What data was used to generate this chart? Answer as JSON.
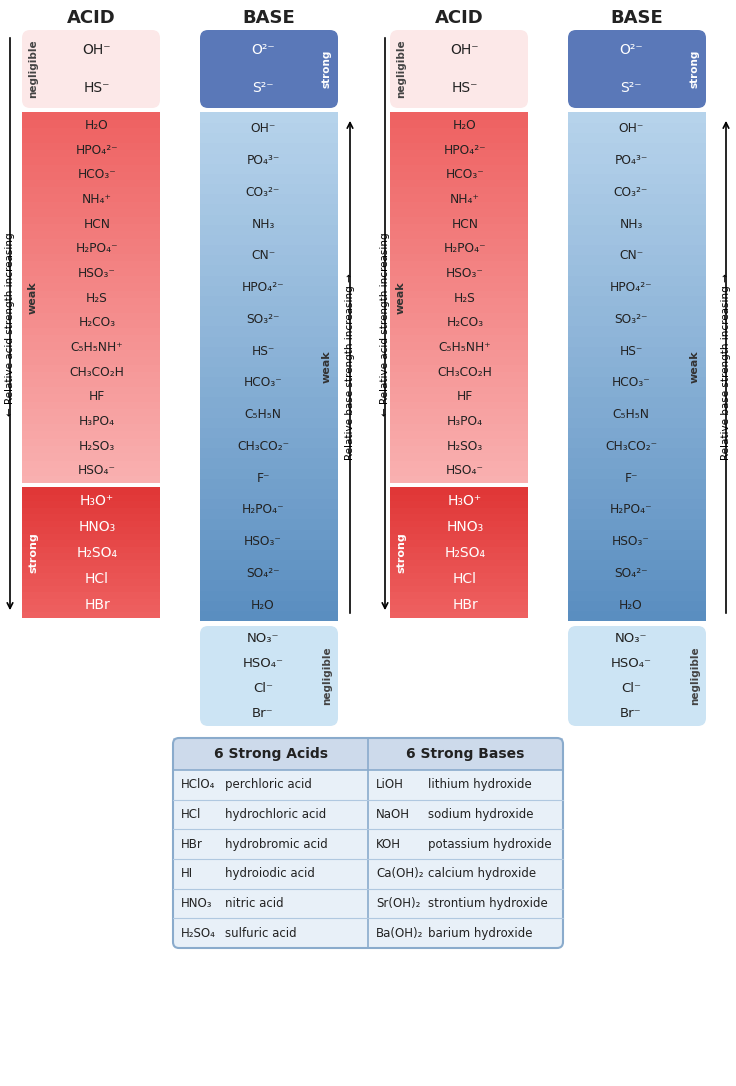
{
  "title_acid": "ACID",
  "title_base": "BASE",
  "acid_negl": [
    "OH⁻",
    "HS⁻"
  ],
  "base_strong_top": [
    "O²⁻",
    "S²⁻"
  ],
  "acid_weak": [
    "H₂O",
    "HPO₄²⁻",
    "HCO₃⁻",
    "NH₄⁺",
    "HCN",
    "H₂PO₄⁻",
    "HSO₃⁻",
    "H₂S",
    "H₂CO₃",
    "C₅H₅NH⁺",
    "CH₃CO₂H",
    "HF",
    "H₃PO₄",
    "H₂SO₃",
    "HSO₄⁻"
  ],
  "base_weak": [
    "OH⁻",
    "PO₄³⁻",
    "CO₃²⁻",
    "NH₃",
    "CN⁻",
    "HPO₄²⁻",
    "SO₃²⁻",
    "HS⁻",
    "HCO₃⁻",
    "C₅H₅N",
    "CH₃CO₂⁻",
    "F⁻",
    "H₂PO₄⁻",
    "HSO₃⁻",
    "SO₄²⁻",
    "H₂O"
  ],
  "acid_strong": [
    "H₃O⁺",
    "HNO₃",
    "H₂SO₄",
    "HCl",
    "HBr"
  ],
  "base_negl_bot": [
    "NO₃⁻",
    "HSO₄⁻",
    "Cl⁻",
    "Br⁻"
  ],
  "table_header_left": "6 Strong Acids",
  "table_header_right": "6 Strong Bases",
  "strong_acids_table": [
    [
      "HClO₄",
      "perchloric acid",
      "LiOH",
      "lithium hydroxide"
    ],
    [
      "HCl",
      "hydrochloric acid",
      "NaOH",
      "sodium hydroxide"
    ],
    [
      "HBr",
      "hydrobromic acid",
      "KOH",
      "potassium hydroxide"
    ],
    [
      "HI",
      "hydroiodic acid",
      "Ca(OH)₂",
      "calcium hydroxide"
    ],
    [
      "HNO₃",
      "nitric acid",
      "Sr(OH)₂",
      "strontium hydroxide"
    ],
    [
      "H₂SO₄",
      "sulfuric acid",
      "Ba(OH)₂",
      "barium hydroxide"
    ]
  ],
  "arrow_acid_left": "← Relative acid strength increasing",
  "arrow_base_right1": "Relative base strength increasing →",
  "arrow_acid_mid": "← Relative acid strength increasing",
  "arrow_base_right2": "Relative base strength increasing →",
  "label_negligible": "negligible",
  "label_weak": "weak",
  "label_strong": "strong",
  "color_negl_acid": "#fce8e8",
  "color_weak_acid_top": "#f9b0b0",
  "color_weak_acid_bot": "#ee6060",
  "color_strong_acid_top": "#ee6060",
  "color_strong_acid_bot": "#df3535",
  "color_base_strong_top": "#5a78b8",
  "color_base_weak_top": "#5a8ec0",
  "color_base_weak_bot": "#b8d4ec",
  "color_base_negl_bot": "#cce4f4",
  "bg_color": "#ffffff",
  "text_dark": "#222222",
  "text_white": "#ffffff"
}
